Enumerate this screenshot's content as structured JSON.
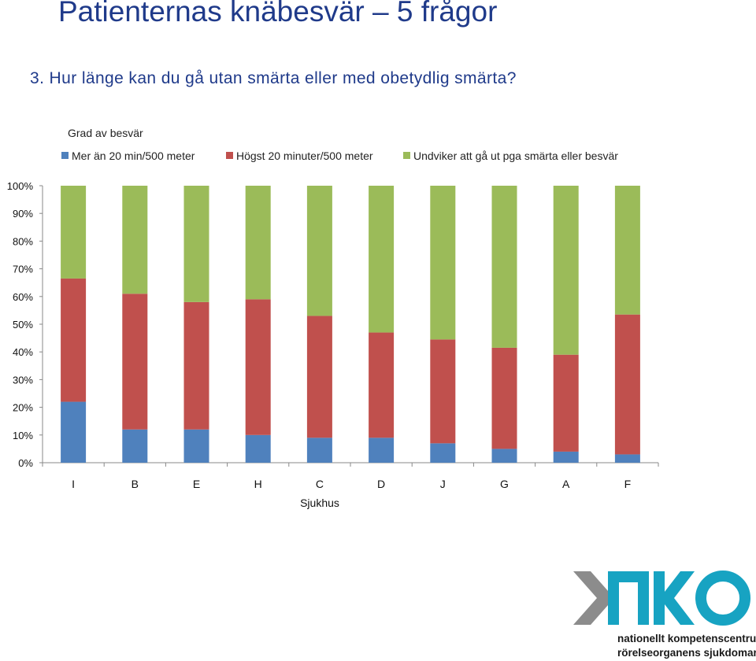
{
  "page": {
    "title": "Patienternas knäbesvär – 5 frågor",
    "question": "3. Hur länge kan du gå utan smärta eller med obetydlig smärta?"
  },
  "chart_data": {
    "type": "bar",
    "stacked": "percent",
    "title": "Grad av besvär",
    "xlabel": "Sjukhus",
    "ylabel": "",
    "ylim": [
      0,
      100
    ],
    "yticks": [
      "0%",
      "10%",
      "20%",
      "30%",
      "40%",
      "50%",
      "60%",
      "70%",
      "80%",
      "90%",
      "100%"
    ],
    "categories": [
      "I",
      "B",
      "E",
      "H",
      "C",
      "D",
      "J",
      "G",
      "A",
      "F"
    ],
    "series": [
      {
        "name": "Mer än 20 min/500 meter",
        "color": "#4f81bd",
        "values": [
          22,
          12,
          12,
          10,
          9,
          9,
          7,
          5,
          4,
          3
        ]
      },
      {
        "name": "Högst 20 minuter/500 meter",
        "color": "#c0504d",
        "values": [
          44.5,
          49,
          46,
          49,
          44,
          38,
          37.5,
          36.5,
          35,
          50.5
        ]
      },
      {
        "name": "Undviker att gå ut pga smärta eller besvär",
        "color": "#9bbb59",
        "values": [
          33.5,
          39,
          42,
          41,
          47,
          53,
          55.5,
          58.5,
          61,
          46.5
        ]
      }
    ],
    "legend_position": "top",
    "grid": false
  },
  "logo": {
    "text_line1": "nationellt kompetenscentrum",
    "text_line2": "rörelseorganens sjukdomar",
    "colors": {
      "gray": "#8c8c8c",
      "teal": "#17a3c2",
      "dark": "#1a1a1a"
    }
  }
}
